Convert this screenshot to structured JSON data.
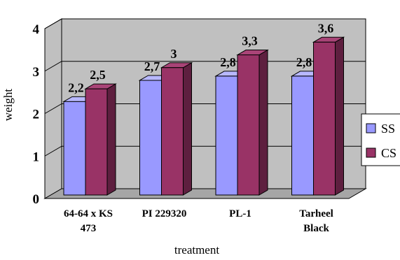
{
  "chart_data": {
    "type": "bar",
    "title": "",
    "xlabel": "treatment",
    "ylabel": "weight",
    "ylim": [
      0,
      4
    ],
    "yticks": [
      0,
      1,
      2,
      3,
      4
    ],
    "grid": true,
    "legend_position": "right",
    "categories": [
      [
        "64-64 x KS",
        "473"
      ],
      [
        "PI 229320"
      ],
      [
        "PL-1"
      ],
      [
        "Tarheel",
        "Black"
      ]
    ],
    "series": [
      {
        "name": "SS",
        "values": [
          2.2,
          2.7,
          2.8,
          2.8
        ],
        "labels": [
          "2,2",
          "2,7",
          "2,8",
          "2,8"
        ],
        "color": "#9999ff",
        "side_color": "#666699",
        "top_color": "#b8b8ff"
      },
      {
        "name": "CS",
        "values": [
          2.5,
          3.0,
          3.3,
          3.6
        ],
        "labels": [
          "2,5",
          "3",
          "3,3",
          "3,6"
        ],
        "color": "#993366",
        "side_color": "#5e1f3f",
        "top_color": "#a94477"
      }
    ],
    "colors": {
      "wall": "#c0c0c0",
      "floor": "#a6a6a6",
      "grid": "#000000"
    }
  }
}
